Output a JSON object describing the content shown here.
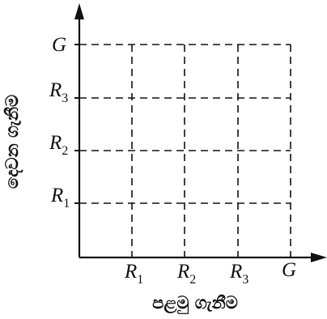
{
  "diagram": {
    "y_ticks": [
      {
        "letter": "G",
        "sub": ""
      },
      {
        "letter": "R",
        "sub": "3"
      },
      {
        "letter": "R",
        "sub": "2"
      },
      {
        "letter": "R",
        "sub": "1"
      }
    ],
    "x_ticks": [
      {
        "letter": "R",
        "sub": "1"
      },
      {
        "letter": "R",
        "sub": "2"
      },
      {
        "letter": "R",
        "sub": "3"
      },
      {
        "letter": "G",
        "sub": ""
      }
    ],
    "x_axis_title": "පළමු ගැනීම",
    "y_axis_title": "දෙවන ගැනීම"
  }
}
